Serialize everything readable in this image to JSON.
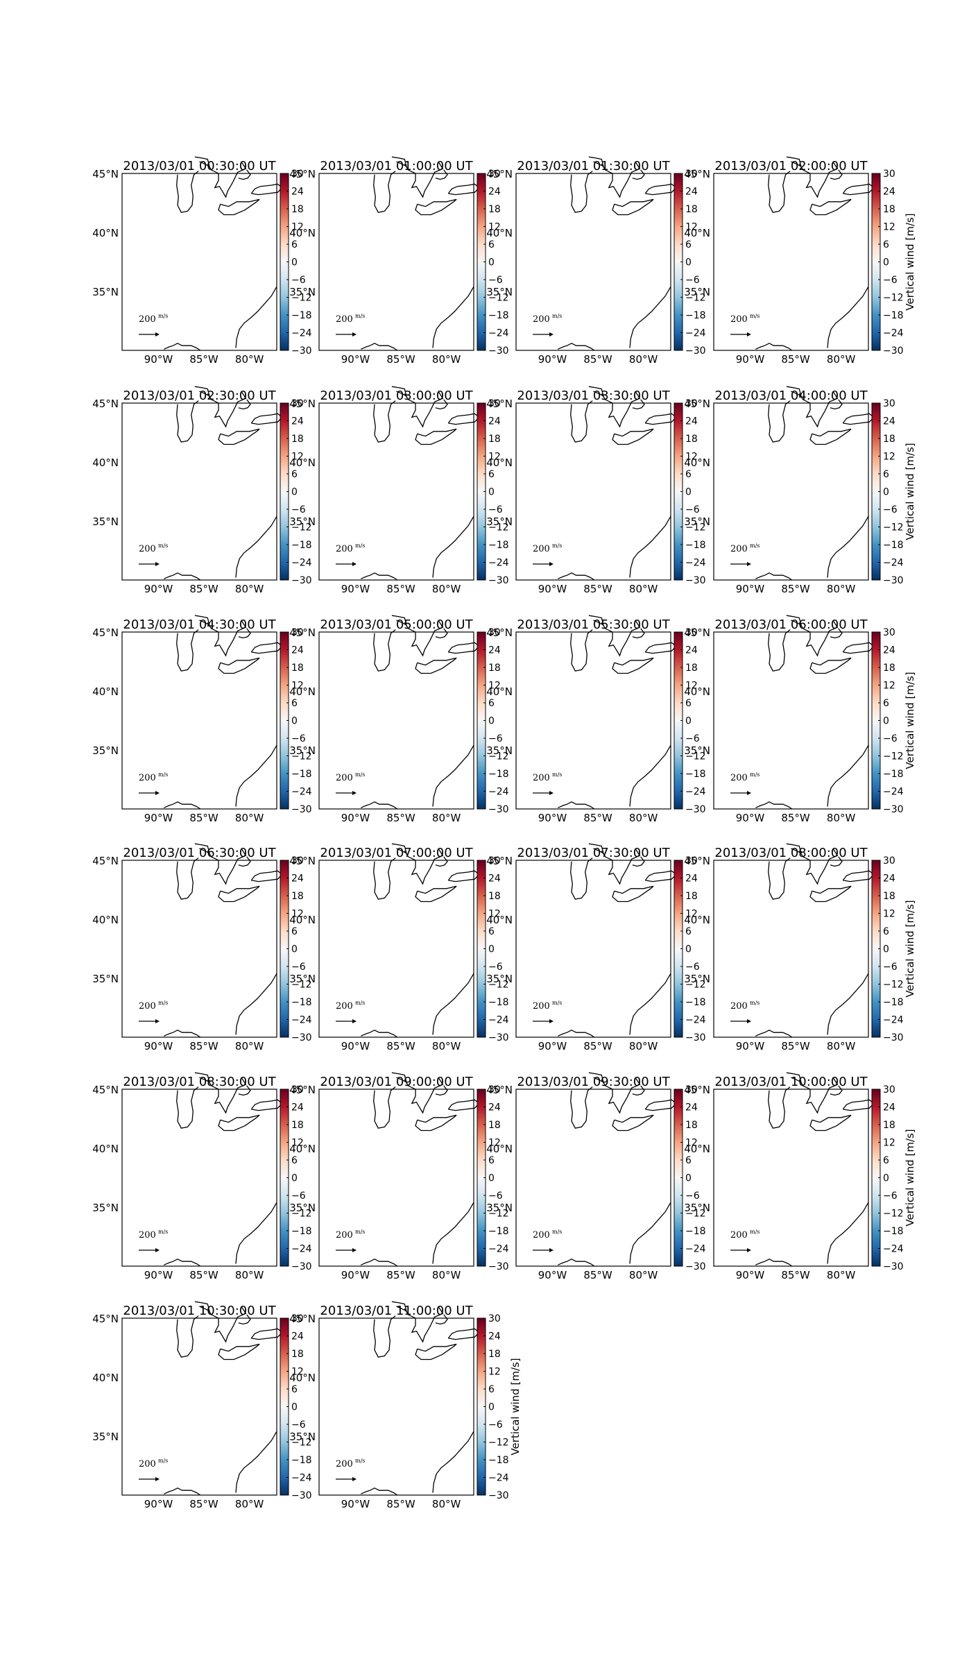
{
  "figure": {
    "colors": {
      "background": "#ffffff",
      "frame": "#000000",
      "coast": "#000000"
    },
    "colormap": {
      "name": "RdBu_r",
      "stops": [
        "#053061",
        "#2166ac",
        "#4393c3",
        "#92c5de",
        "#d1e5f0",
        "#f7f7f7",
        "#fddbc7",
        "#f4a582",
        "#d6604d",
        "#b2182b",
        "#67001f"
      ],
      "vmin": -30,
      "vmax": 30
    }
  },
  "chart_data": {
    "type": "heatmap",
    "panel_count": 22,
    "colorbar_label": "Vertical wind [m/s]",
    "colorbar_ticks": [
      "30",
      "24",
      "18",
      "12",
      "6",
      "0",
      "−6",
      "−12",
      "−18",
      "−24",
      "−30"
    ],
    "colorbar_label_on_columns": [
      3
    ],
    "colorbar_label_on_panels": [
      21
    ],
    "x_ticks": [
      "90°W",
      "85°W",
      "80°W"
    ],
    "y_ticks": [
      "45°N",
      "40°N",
      "35°N"
    ],
    "x_range_lon": [
      -94,
      -77
    ],
    "y_range_lat": [
      30,
      45
    ],
    "reference_arrow": {
      "value": "200",
      "unit": "m/s"
    },
    "grid": "off",
    "panels": [
      {
        "title": "2013/03/01 00:30:00 UT"
      },
      {
        "title": "2013/03/01 01:00:00 UT"
      },
      {
        "title": "2013/03/01 01:30:00 UT"
      },
      {
        "title": "2013/03/01 02:00:00 UT"
      },
      {
        "title": "2013/03/01 02:30:00 UT"
      },
      {
        "title": "2013/03/01 03:00:00 UT"
      },
      {
        "title": "2013/03/01 03:30:00 UT"
      },
      {
        "title": "2013/03/01 04:00:00 UT"
      },
      {
        "title": "2013/03/01 04:30:00 UT"
      },
      {
        "title": "2013/03/01 05:00:00 UT"
      },
      {
        "title": "2013/03/01 05:30:00 UT"
      },
      {
        "title": "2013/03/01 06:00:00 UT"
      },
      {
        "title": "2013/03/01 06:30:00 UT"
      },
      {
        "title": "2013/03/01 07:00:00 UT"
      },
      {
        "title": "2013/03/01 07:30:00 UT"
      },
      {
        "title": "2013/03/01 08:00:00 UT"
      },
      {
        "title": "2013/03/01 08:30:00 UT"
      },
      {
        "title": "2013/03/01 09:00:00 UT"
      },
      {
        "title": "2013/03/01 09:30:00 UT"
      },
      {
        "title": "2013/03/01 10:00:00 UT"
      },
      {
        "title": "2013/03/01 10:30:00 UT"
      },
      {
        "title": "2013/03/01 11:00:00 UT"
      }
    ]
  }
}
